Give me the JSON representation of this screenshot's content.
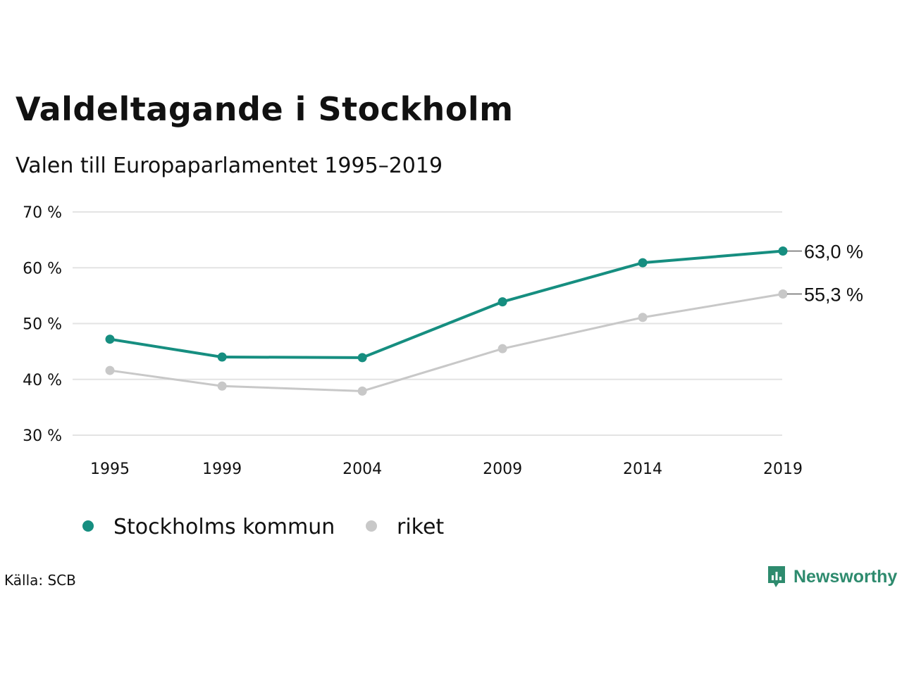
{
  "title": "Valdeltagande i Stockholm",
  "subtitle": "Valen till Europaparlamentet 1995–2019",
  "source": "Källa: SCB",
  "brand": {
    "name": "Newsworthy",
    "icon": "newsworthy-logo-icon",
    "color": "#2e8b6e"
  },
  "chart_data": {
    "type": "line",
    "x": [
      "1995",
      "1999",
      "2004",
      "2009",
      "2014",
      "2019"
    ],
    "x_positions": [
      1995,
      1999,
      2004,
      2009,
      2014,
      2019
    ],
    "ylim": [
      30,
      70
    ],
    "yticks": [
      30,
      40,
      50,
      60,
      70
    ],
    "ytick_labels": [
      "30 %",
      "40 %",
      "50 %",
      "60 %",
      "70 %"
    ],
    "grid": true,
    "legend_position": "bottom-left",
    "series": [
      {
        "name": "Stockholms kommun",
        "color": "#168e80",
        "values": [
          47.2,
          44.0,
          43.9,
          53.9,
          60.9,
          63.0
        ],
        "end_label": "63,0 %"
      },
      {
        "name": "riket",
        "color": "#c8c8c8",
        "values": [
          41.6,
          38.8,
          37.9,
          45.5,
          51.1,
          55.3
        ],
        "end_label": "55,3 %"
      }
    ]
  }
}
